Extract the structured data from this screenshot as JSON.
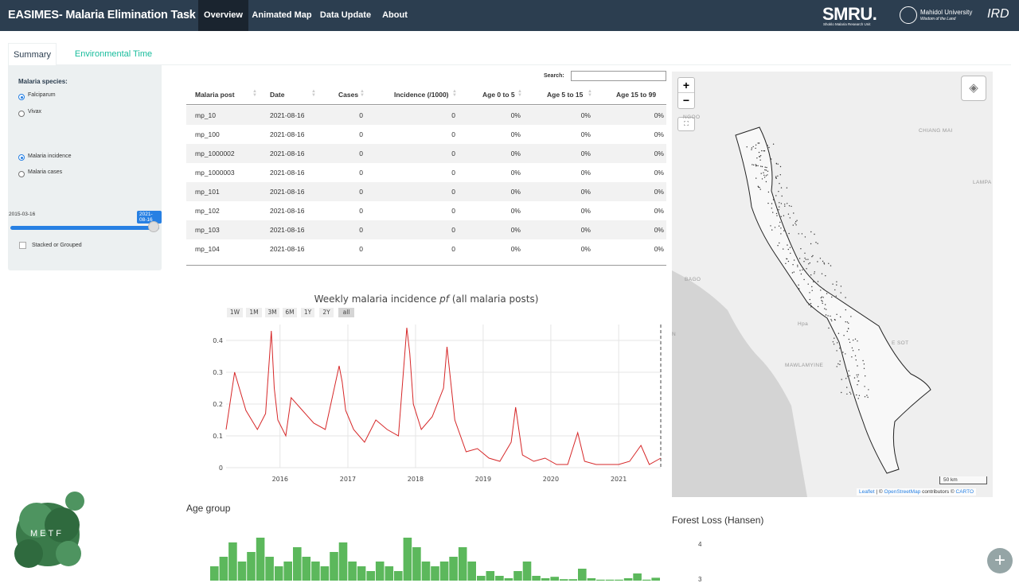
{
  "navbar": {
    "brand": "EASIMES- Malaria Elimination Task Force",
    "items": [
      "Overview",
      "Animated Map",
      "Data Update",
      "About"
    ],
    "active_index": 0,
    "logos": {
      "smru": "SMRU.",
      "smru_sub": "Shoklo Malaria Research Unit",
      "mahidol": "Mahidol University",
      "mahidol_sub": "Wisdom of the Land",
      "ird": "IRD"
    }
  },
  "tabs": [
    "Summary",
    "Environmental Time Series"
  ],
  "sidebar": {
    "species_label": "Malaria species:",
    "species_options": [
      "Falciparum",
      "Vivax"
    ],
    "species_selected": 0,
    "measure_options": [
      "Malaria incidence",
      "Malaria cases"
    ],
    "measure_selected": 0,
    "slider": {
      "min_label": "2015-03-16",
      "max_label": "2021-08-16",
      "value": "2021-08-16"
    },
    "checkbox_label": "Stacked or Grouped",
    "checkbox_checked": false
  },
  "table": {
    "search_label": "Search:",
    "search_value": "",
    "columns": [
      "Malaria post",
      "Date",
      "Cases",
      "Incidence (/1000)",
      "Age 0 to 5",
      "Age 5 to 15",
      "Age 15 to 99"
    ],
    "rows": [
      [
        "mp_10",
        "2021-08-16",
        "0",
        "0",
        "0%",
        "0%",
        "0%"
      ],
      [
        "mp_100",
        "2021-08-16",
        "0",
        "0",
        "0%",
        "0%",
        "0%"
      ],
      [
        "mp_1000002",
        "2021-08-16",
        "0",
        "0",
        "0%",
        "0%",
        "0%"
      ],
      [
        "mp_1000003",
        "2021-08-16",
        "0",
        "0",
        "0%",
        "0%",
        "0%"
      ],
      [
        "mp_101",
        "2021-08-16",
        "0",
        "0",
        "0%",
        "0%",
        "0%"
      ],
      [
        "mp_102",
        "2021-08-16",
        "0",
        "0",
        "0%",
        "0%",
        "0%"
      ],
      [
        "mp_103",
        "2021-08-16",
        "0",
        "0",
        "0%",
        "0%",
        "0%"
      ],
      [
        "mp_104",
        "2021-08-16",
        "0",
        "0",
        "0%",
        "0%",
        "0%"
      ]
    ]
  },
  "range_buttons": [
    "1W",
    "1M",
    "3M",
    "6M",
    "1Y",
    "2Y",
    "all"
  ],
  "range_active": "all",
  "map": {
    "places": [
      "CHIANG MAI",
      "LAMPA",
      "BAGO",
      "MAWLAMYINE",
      "E SOT",
      "N",
      "NGOO",
      "Hpa"
    ],
    "scale": "50 km",
    "attribution": {
      "leaflet": "Leaflet",
      "sep1": " | © ",
      "osm": "OpenStreetMap",
      "mid": " contributors © ",
      "carto": "CARTO"
    },
    "zoom_in": "+",
    "zoom_out": "−",
    "layers_icon": "layers-icon",
    "fullscreen_icon": "fullscreen-icon"
  },
  "logo_text": "METF",
  "age_group_title": "Age group",
  "forest_title": "Forest Loss (Hansen)",
  "forest_ticks": [
    "4",
    "3"
  ],
  "fab_label": "+",
  "colors": {
    "navbar": "#2c3e50",
    "accent": "#18bc9c",
    "line": "#d62728",
    "bars": "#5cb85c",
    "slider": "#2780e3"
  },
  "chart_data": [
    {
      "type": "line",
      "title": "Weekly malaria incidence",
      "title_italic": "pf",
      "title_suffix": "(all malaria posts)",
      "xlabel": "",
      "ylabel": "",
      "x_ticks": [
        "2016",
        "2017",
        "2018",
        "2019",
        "2020",
        "2021"
      ],
      "y_ticks": [
        "0",
        "0.1",
        "0.2",
        "0.3",
        "0.4"
      ],
      "xlim": [
        "2015-03-16",
        "2021-08-16"
      ],
      "ylim": [
        0,
        0.45
      ],
      "series": [
        {
          "x": [
            "2015-03-16",
            "2015-05-01",
            "2015-07-01",
            "2015-09-01",
            "2015-10-15",
            "2015-11-15",
            "2015-12-01",
            "2015-12-20",
            "2016-02-01",
            "2016-03-01",
            "2016-05-01",
            "2016-07-01",
            "2016-09-01",
            "2016-11-15",
            "2016-12-01",
            "2016-12-20",
            "2017-02-01",
            "2017-04-01",
            "2017-06-01",
            "2017-08-01",
            "2017-10-01",
            "2017-11-15",
            "2017-12-01",
            "2017-12-20",
            "2018-02-01",
            "2018-04-01",
            "2018-06-01",
            "2018-06-20",
            "2018-08-01",
            "2018-10-01",
            "2018-12-01",
            "2019-02-01",
            "2019-04-01",
            "2019-06-01",
            "2019-06-25",
            "2019-08-01",
            "2019-10-01",
            "2019-12-01",
            "2020-02-01",
            "2020-04-01",
            "2020-05-25",
            "2020-07-01",
            "2020-09-01",
            "2020-11-01",
            "2021-01-01",
            "2021-03-01",
            "2021-05-01",
            "2021-06-15",
            "2021-08-16"
          ],
          "y": [
            0.12,
            0.3,
            0.18,
            0.12,
            0.17,
            0.43,
            0.25,
            0.15,
            0.1,
            0.22,
            0.18,
            0.14,
            0.12,
            0.32,
            0.27,
            0.18,
            0.12,
            0.08,
            0.15,
            0.12,
            0.1,
            0.44,
            0.36,
            0.2,
            0.12,
            0.16,
            0.25,
            0.38,
            0.15,
            0.05,
            0.06,
            0.03,
            0.02,
            0.08,
            0.19,
            0.04,
            0.02,
            0.03,
            0.01,
            0.01,
            0.11,
            0.02,
            0.01,
            0.01,
            0.01,
            0.02,
            0.07,
            0.01,
            0.03
          ]
        }
      ]
    },
    {
      "type": "bar",
      "title": "Age group",
      "values": [
        0.3,
        0.5,
        0.8,
        0.4,
        0.6,
        0.9,
        0.5,
        0.3,
        0.4,
        0.7,
        0.5,
        0.4,
        0.3,
        0.6,
        0.8,
        0.4,
        0.3,
        0.2,
        0.4,
        0.3,
        0.2,
        0.9,
        0.7,
        0.4,
        0.3,
        0.4,
        0.5,
        0.7,
        0.4,
        0.1,
        0.2,
        0.1,
        0.05,
        0.2,
        0.4,
        0.1,
        0.05,
        0.08,
        0.03,
        0.03,
        0.25,
        0.05,
        0.02,
        0.02,
        0.02,
        0.05,
        0.15,
        0.02,
        0.06
      ]
    }
  ]
}
